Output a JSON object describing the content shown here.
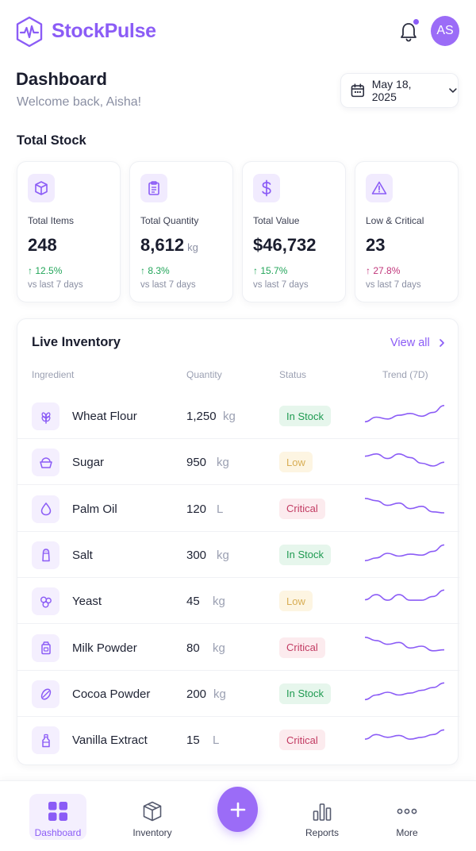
{
  "app": {
    "name": "StockPulse",
    "accent": "#8b5cf6"
  },
  "header": {
    "avatar_initials": "AS",
    "has_notification": true
  },
  "page": {
    "title": "Dashboard",
    "welcome": "Welcome back, Aisha!",
    "date": "May 18, 2025"
  },
  "total_stock": {
    "title": "Total Stock",
    "cards": [
      {
        "icon": "box-icon",
        "label": "Total Items",
        "value": "248",
        "unit": "",
        "change": "12.5%",
        "direction": "up",
        "period": "vs last 7 days"
      },
      {
        "icon": "clipboard-icon",
        "label": "Total Quantity",
        "value": "8,612",
        "unit": "kg",
        "change": "8.3%",
        "direction": "up",
        "period": "vs last 7 days"
      },
      {
        "icon": "dollar-icon",
        "label": "Total Value",
        "value": "$46,732",
        "unit": "",
        "change": "15.7%",
        "direction": "up",
        "period": "vs last 7 days"
      },
      {
        "icon": "warning-icon",
        "label": "Low & Critical",
        "value": "23",
        "unit": "",
        "change": "27.8%",
        "direction": "up-negative",
        "period": "vs last 7 days"
      }
    ]
  },
  "inventory": {
    "title": "Live Inventory",
    "view_all": "View all",
    "columns": [
      "Ingredient",
      "Quantity",
      "Status",
      "Trend (7D)"
    ],
    "rows": [
      {
        "icon": "wheat-icon",
        "name": "Wheat Flour",
        "qty": "1,250",
        "unit": "kg",
        "status": "In Stock",
        "status_type": "instock",
        "trend": [
          2,
          3,
          2.6,
          3.4,
          3.8,
          3.2,
          4,
          5.5
        ]
      },
      {
        "icon": "sugar-icon",
        "name": "Sugar",
        "qty": "950",
        "unit": "kg",
        "status": "Low",
        "status_type": "low",
        "trend": [
          4.5,
          5,
          4,
          5,
          4.2,
          3,
          2.4,
          3.2
        ]
      },
      {
        "icon": "oil-drop-icon",
        "name": "Palm Oil",
        "qty": "120",
        "unit": "L",
        "status": "Critical",
        "status_type": "critical",
        "trend": [
          5.5,
          5,
          4,
          4.5,
          3.3,
          3.8,
          2.6,
          2.4
        ]
      },
      {
        "icon": "salt-shaker-icon",
        "name": "Salt",
        "qty": "300",
        "unit": "kg",
        "status": "In Stock",
        "status_type": "instock",
        "trend": [
          2,
          2.6,
          3.6,
          3,
          3.4,
          3.2,
          4,
          5.4
        ]
      },
      {
        "icon": "yeast-icon",
        "name": "Yeast",
        "qty": "45",
        "unit": "kg",
        "status": "Low",
        "status_type": "low",
        "trend": [
          3.5,
          4.6,
          3.4,
          4.6,
          3.4,
          3.4,
          4.2,
          5.6
        ]
      },
      {
        "icon": "milk-powder-icon",
        "name": "Milk Powder",
        "qty": "80",
        "unit": "kg",
        "status": "Critical",
        "status_type": "critical",
        "trend": [
          5.5,
          4.8,
          4,
          4.4,
          3.2,
          3.6,
          2.6,
          2.8
        ]
      },
      {
        "icon": "cocoa-icon",
        "name": "Cocoa Powder",
        "qty": "200",
        "unit": "kg",
        "status": "In Stock",
        "status_type": "instock",
        "trend": [
          2,
          3,
          3.6,
          3,
          3.4,
          4,
          4.6,
          5.6
        ]
      },
      {
        "icon": "vanilla-bottle-icon",
        "name": "Vanilla Extract",
        "qty": "15",
        "unit": "L",
        "status": "Critical",
        "status_type": "critical",
        "trend": [
          3.4,
          4.4,
          3.8,
          4.2,
          3.4,
          3.8,
          4.4,
          5.4
        ]
      }
    ]
  },
  "nav": {
    "items": [
      {
        "icon": "grid-icon",
        "label": "Dashboard",
        "active": true
      },
      {
        "icon": "box-icon",
        "label": "Inventory",
        "active": false
      },
      {
        "icon": "plus-icon",
        "label": "",
        "active": false
      },
      {
        "icon": "bar-chart-icon",
        "label": "Reports",
        "active": false
      },
      {
        "icon": "more-icon",
        "label": "More",
        "active": false
      }
    ]
  }
}
